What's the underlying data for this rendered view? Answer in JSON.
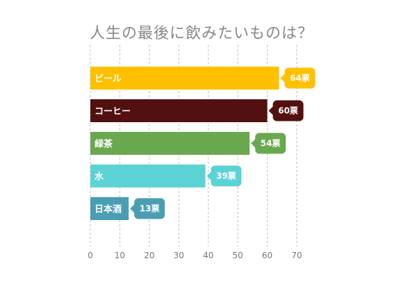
{
  "chart_data": {
    "type": "bar",
    "orientation": "horizontal",
    "title": "人生の最後に飲みたいものは？",
    "categories": [
      "ビール",
      "コーヒー",
      "緑茶",
      "水",
      "日本酒"
    ],
    "values": [
      64,
      60,
      54,
      39,
      13
    ],
    "value_labels": [
      "64票",
      "60票",
      "54票",
      "39票",
      "13票"
    ],
    "colors": [
      "#FFC000",
      "#521010",
      "#6AA84F",
      "#5BD3D5",
      "#4A9EB4"
    ],
    "xlim": [
      0,
      70
    ],
    "xticks": [
      "0",
      "10",
      "20",
      "30",
      "40",
      "50",
      "60",
      "70"
    ],
    "grid": true,
    "xlabel": "",
    "ylabel": ""
  }
}
